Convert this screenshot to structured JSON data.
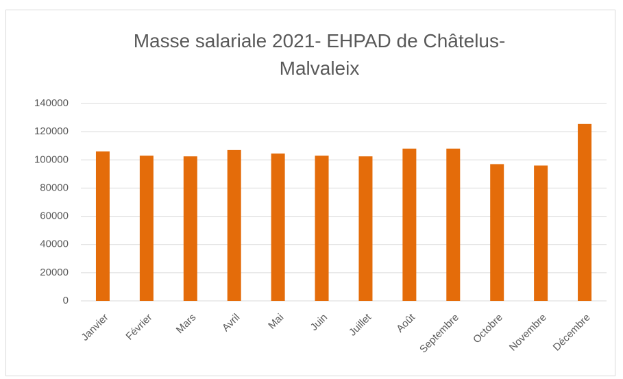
{
  "chart_data": {
    "type": "bar",
    "title": "Masse salariale 2021- EHPAD de Châtelus-Malvaleix",
    "categories": [
      "Janvier",
      "Février",
      "Mars",
      "Avril",
      "Mai",
      "Juin",
      "Juillet",
      "Août",
      "Septembre",
      "Octobre",
      "Novembre",
      "Décembre"
    ],
    "values": [
      106000,
      103000,
      102500,
      107000,
      104500,
      103000,
      102500,
      108000,
      108000,
      97000,
      96000,
      125500
    ],
    "color": "#e46c0a",
    "ylim": [
      0,
      140000
    ],
    "yticks": [
      0,
      20000,
      40000,
      60000,
      80000,
      100000,
      120000,
      140000
    ],
    "grid": true
  }
}
